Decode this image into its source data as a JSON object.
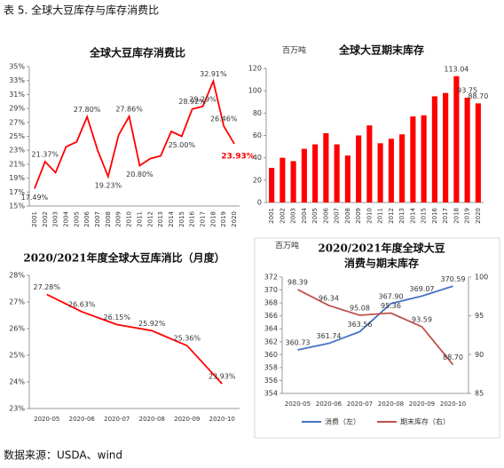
{
  "header": "表 5.  全球大豆库存与库存消费比",
  "source": "数据来源：USDA、wind",
  "chart_data": [
    {
      "type": "line",
      "title": "全球大豆库存消费比",
      "color": "#ff0000",
      "categories": [
        "2001",
        "2002",
        "2003",
        "2004",
        "2005",
        "2006",
        "2007",
        "2008",
        "2009",
        "2010",
        "2011",
        "2012",
        "2013",
        "2014",
        "2015",
        "2016",
        "2017",
        "2018",
        "2019",
        "2020"
      ],
      "values": [
        17.49,
        21.37,
        19.8,
        23.5,
        24.2,
        27.8,
        23.0,
        19.23,
        25.2,
        27.86,
        20.8,
        21.8,
        22.2,
        25.7,
        25.0,
        28.92,
        29.29,
        32.91,
        26.46,
        23.93
      ],
      "value_labels": [
        "17.49%",
        "21.37%",
        null,
        null,
        null,
        "27.80%",
        null,
        "19.23%",
        null,
        "27.86%",
        "20.80%",
        null,
        null,
        null,
        "25.00%",
        "28.92%",
        "29.29%",
        "32.91%",
        "26.46%",
        "23.93%"
      ],
      "ylim": [
        15,
        35
      ],
      "yticks": [
        {
          "value": 15,
          "label": "15%"
        },
        {
          "value": 17,
          "label": "17%"
        },
        {
          "value": 19,
          "label": "19%"
        },
        {
          "value": 21,
          "label": "21%"
        },
        {
          "value": 23,
          "label": "23%"
        },
        {
          "value": 25,
          "label": "25%"
        },
        {
          "value": 27,
          "label": "27%"
        },
        {
          "value": 29,
          "label": "29%"
        },
        {
          "value": 31,
          "label": "31%"
        },
        {
          "value": 33,
          "label": "33%"
        },
        {
          "value": 35,
          "label": "35%"
        }
      ],
      "grid": false
    },
    {
      "type": "bar",
      "title": "全球大豆期末库存",
      "unit": "百万吨",
      "color": "#ff0000",
      "categories": [
        "2001",
        "2002",
        "2003",
        "2004",
        "2005",
        "2006",
        "2007",
        "2008",
        "2009",
        "2010",
        "2011",
        "2012",
        "2013",
        "2014",
        "2015",
        "2016",
        "2017",
        "2018",
        "2019",
        "2020"
      ],
      "values": [
        31,
        40,
        37,
        48,
        52,
        62,
        52,
        42,
        60,
        69,
        53,
        57,
        61,
        77,
        78,
        95,
        98,
        113.04,
        93.75,
        88.7
      ],
      "value_labels": [
        null,
        null,
        null,
        null,
        null,
        null,
        null,
        null,
        null,
        null,
        null,
        null,
        null,
        null,
        null,
        null,
        null,
        "113.04",
        "93.75",
        "88.70"
      ],
      "ylim": [
        0,
        120
      ],
      "yticks": [
        0,
        20,
        40,
        60,
        80,
        100,
        120
      ],
      "grid": false
    },
    {
      "type": "line",
      "title": "2020/2021年度全球大豆库消比（月度）",
      "color": "#ff0000",
      "categories": [
        "2020-05",
        "2020-06",
        "2020-07",
        "2020-08",
        "2020-09",
        "2020-10"
      ],
      "values": [
        27.28,
        26.63,
        26.15,
        25.92,
        25.36,
        23.93
      ],
      "value_labels": [
        "27.28%",
        "26.63%",
        "26.15%",
        "25.92%",
        "25.36%",
        "23.93%"
      ],
      "ylim": [
        23,
        28
      ],
      "yticks": [
        {
          "value": 23,
          "label": "23%"
        },
        {
          "value": 24,
          "label": "24%"
        },
        {
          "value": 25,
          "label": "25%"
        },
        {
          "value": 26,
          "label": "26%"
        },
        {
          "value": 27,
          "label": "27%"
        },
        {
          "value": 28,
          "label": "28%"
        }
      ],
      "grid": false
    },
    {
      "type": "line",
      "title": [
        "2020/2021年度全球大豆",
        "消费与期末库存"
      ],
      "unit": "百万吨",
      "categories": [
        "2020-05",
        "2020-06",
        "2020-07",
        "2020-08",
        "2020-09",
        "2020-10"
      ],
      "series": [
        {
          "name": "消费（左）",
          "color": "#4472c4",
          "values": [
            360.73,
            361.74,
            363.56,
            367.9,
            369.07,
            370.59
          ],
          "value_labels": [
            "360.73",
            "361.74",
            "363.56",
            "367.90",
            "369.07",
            "370.59"
          ]
        },
        {
          "name": "期末库存（右）",
          "color": "#c0504d",
          "axis": "y2",
          "values": [
            98.39,
            96.34,
            95.08,
            95.36,
            93.59,
            88.7
          ],
          "value_labels": [
            "98.39",
            "96.34",
            "95.08",
            "95.36",
            "93.59",
            "88.70"
          ]
        }
      ],
      "ylim": [
        354,
        372
      ],
      "yticks": [
        354,
        356,
        358,
        360,
        362,
        364,
        366,
        368,
        370,
        372
      ],
      "y2lim": [
        85,
        100
      ],
      "y2ticks": [
        85,
        90,
        95,
        100
      ],
      "grid": false
    }
  ]
}
